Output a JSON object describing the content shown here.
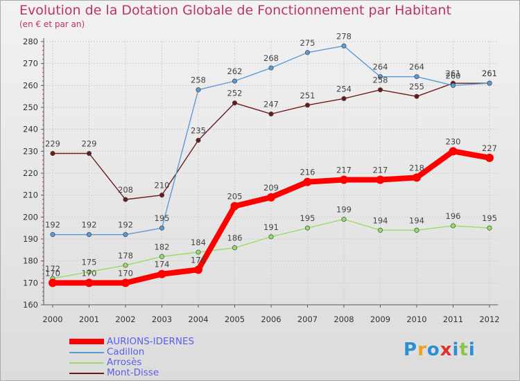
{
  "header": {
    "title": "Evolution de la Dotation Globale de Fonctionnement par Habitant",
    "subtitle": "(en € et par an)"
  },
  "logo": {
    "text": "Proxiti",
    "colors": [
      "#2a8fd6",
      "#f0a020",
      "#2a8fd6",
      "#e03030",
      "#2a8fd6",
      "#8bc24a",
      "#2a8fd6"
    ]
  },
  "chart_data": {
    "type": "line",
    "title": "Evolution de la Dotation Globale de Fonctionnement par Habitant",
    "subtitle": "(en € et par an)",
    "x": [
      2000,
      2001,
      2002,
      2003,
      2004,
      2005,
      2006,
      2007,
      2008,
      2009,
      2010,
      2011,
      2012
    ],
    "xticks": [
      "2000",
      "2001",
      "2002",
      "2003",
      "2004",
      "2005",
      "2006",
      "2007",
      "2008",
      "2009",
      "2010",
      "2011",
      "2012"
    ],
    "ylim": [
      160,
      280
    ],
    "yticks": [
      160,
      170,
      180,
      190,
      200,
      210,
      220,
      230,
      240,
      250,
      260,
      270,
      280
    ],
    "grid": true,
    "legend_position": "bottom-left",
    "series": [
      {
        "name": "Mont-Disse",
        "color": "#6b1a1a",
        "emphasis": false,
        "values": [
          229,
          229,
          208,
          210,
          235,
          252,
          247,
          251,
          254,
          258,
          255,
          261,
          261
        ]
      },
      {
        "name": "Arrosès",
        "color": "#99dd66",
        "emphasis": false,
        "values": [
          172,
          175,
          178,
          182,
          184,
          186,
          191,
          195,
          199,
          194,
          194,
          196,
          195
        ]
      },
      {
        "name": "Cadillon",
        "color": "#5b9bd5",
        "emphasis": false,
        "values": [
          192,
          192,
          192,
          195,
          258,
          262,
          268,
          275,
          278,
          264,
          264,
          260,
          261
        ]
      },
      {
        "name": "AURIONS-IDERNES",
        "color": "#ff0000",
        "emphasis": true,
        "values": [
          170,
          170,
          170,
          174,
          176,
          205,
          209,
          216,
          217,
          217,
          218,
          230,
          227
        ]
      }
    ],
    "legend": [
      "AURIONS-IDERNES",
      "Cadillon",
      "Arrosès",
      "Mont-Disse"
    ]
  }
}
